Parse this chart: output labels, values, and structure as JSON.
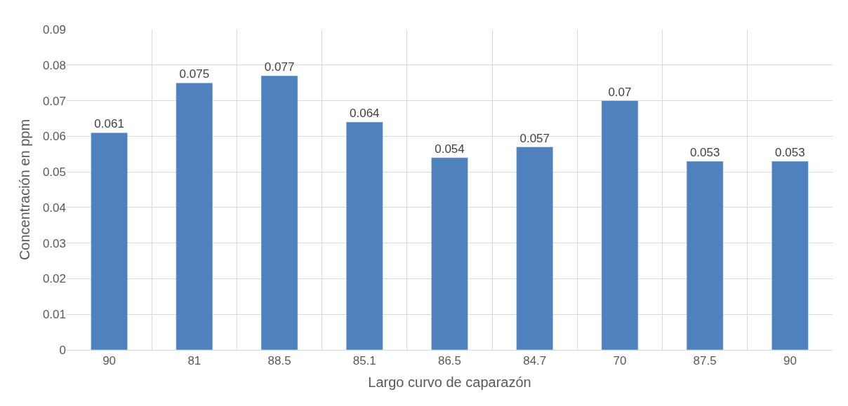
{
  "chart_data": {
    "type": "bar",
    "categories": [
      "90",
      "81",
      "88.5",
      "85.1",
      "86.5",
      "84.7",
      "70",
      "87.5",
      "90"
    ],
    "values": [
      0.061,
      0.075,
      0.077,
      0.064,
      0.054,
      0.057,
      0.07,
      0.053,
      0.053
    ],
    "color": "#4f81bd",
    "xlabel": "Largo curvo de caparazón",
    "ylabel": "Concentración en ppm",
    "ylim": [
      0,
      0.09
    ],
    "yticks": [
      {
        "value": 0,
        "label": "0"
      },
      0.01,
      0.02,
      0.03,
      0.04,
      0.05,
      0.06,
      0.07,
      0.08,
      0.09
    ],
    "grid": true,
    "data_labels": true
  }
}
